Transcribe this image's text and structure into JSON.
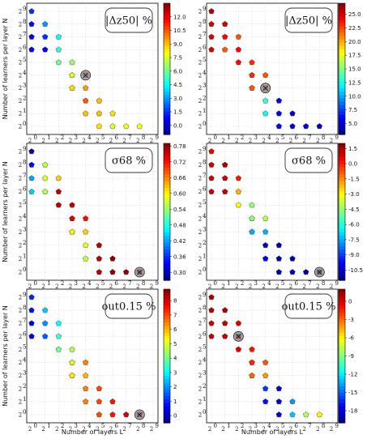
{
  "xlabel": "Number of layers L",
  "ylabel": "Number of learners per layer N",
  "xticks": [
    "2",
    "2",
    "2",
    "2",
    "2",
    "2",
    "2",
    "2",
    "2",
    "2"
  ],
  "yticks": [
    "2",
    "2",
    "2",
    "2",
    "2",
    "2",
    "2",
    "2",
    "2",
    "2"
  ],
  "exponents": [
    "0",
    "1",
    "2",
    "3",
    "4",
    "5",
    "6",
    "7",
    "8",
    "9"
  ],
  "chart_data": [
    {
      "type": "scatter",
      "panel": "top-left",
      "label": "|Δz50| %",
      "colorbar_ticks": [
        "12.0",
        "10.5",
        "9.0",
        "7.5",
        "6.0",
        "4.5",
        "3.0",
        "1.5",
        "0.0"
      ],
      "colorbar_range": [
        -1.0,
        13.5
      ],
      "x": [
        0,
        0,
        0,
        0,
        1,
        1,
        1,
        2,
        2,
        2,
        3,
        3,
        3,
        3,
        3,
        4,
        4,
        4,
        4,
        5,
        5,
        5,
        6,
        6,
        7,
        8
      ],
      "y": [
        9,
        8,
        7,
        6,
        8,
        7,
        6,
        7,
        6,
        5,
        5,
        4,
        4,
        3,
        3,
        3,
        4,
        2,
        1,
        2,
        1,
        0,
        1,
        0,
        0,
        0
      ],
      "values": [
        1.5,
        1.0,
        0.5,
        0.5,
        3.0,
        1.5,
        0.5,
        4.5,
        5.0,
        6.0,
        6.5,
        7.0,
        7.5,
        8.0,
        8.5,
        9.5,
        10.5,
        10.5,
        9.0,
        9.0,
        9.0,
        8.5,
        8.5,
        7.5,
        8.0,
        8.0
      ],
      "highlight": {
        "x": 4,
        "y": 4
      }
    },
    {
      "type": "scatter",
      "panel": "top-right",
      "label": "|Δz50| %",
      "colorbar_ticks": [
        "25.0",
        "22.5",
        "20.0",
        "17.5",
        "15.0",
        "12.5",
        "10.0",
        "7.5",
        "5.0"
      ],
      "colorbar_range": [
        3.0,
        27.0
      ],
      "x": [
        0,
        0,
        0,
        0,
        1,
        1,
        1,
        2,
        2,
        2,
        3,
        3,
        3,
        3,
        3,
        4,
        4,
        4,
        4,
        5,
        5,
        5,
        6,
        6,
        7,
        8
      ],
      "y": [
        9,
        8,
        7,
        6,
        8,
        7,
        6,
        7,
        6,
        5,
        5,
        4,
        4,
        3,
        3,
        3,
        4,
        2,
        1,
        2,
        1,
        0,
        1,
        0,
        0,
        0
      ],
      "values": [
        26,
        25,
        25,
        25,
        25,
        24,
        22,
        22,
        24,
        24,
        23,
        23,
        23,
        22,
        22,
        21,
        22,
        13,
        12,
        6,
        6,
        6,
        5,
        5,
        5,
        5
      ],
      "highlight": {
        "x": 4,
        "y": 3
      }
    },
    {
      "type": "scatter",
      "panel": "middle-left",
      "label": "σ68 %",
      "colorbar_ticks": [
        "0.78",
        "0.72",
        "0.66",
        "0.60",
        "0.54",
        "0.48",
        "0.42",
        "0.36",
        "0.30"
      ],
      "colorbar_range": [
        0.27,
        0.79
      ],
      "x": [
        0,
        0,
        0,
        0,
        1,
        1,
        1,
        2,
        2,
        2,
        3,
        3,
        3,
        3,
        3,
        4,
        4,
        4,
        4,
        5,
        5,
        5,
        6,
        6,
        7,
        8
      ],
      "y": [
        9,
        8,
        7,
        6,
        8,
        7,
        6,
        7,
        6,
        5,
        5,
        4,
        4,
        3,
        3,
        3,
        4,
        2,
        1,
        2,
        1,
        0,
        1,
        0,
        0,
        0
      ],
      "values": [
        0.3,
        0.34,
        0.42,
        0.44,
        0.56,
        0.58,
        0.55,
        0.62,
        0.76,
        0.76,
        0.76,
        0.76,
        0.74,
        0.7,
        0.6,
        0.62,
        0.72,
        0.58,
        0.56,
        0.76,
        0.76,
        0.76,
        0.78,
        0.78,
        0.78,
        0.78
      ],
      "highlight": {
        "x": 8,
        "y": 0
      }
    },
    {
      "type": "scatter",
      "panel": "middle-right",
      "label": "σ68 %",
      "colorbar_ticks": [
        "1.5",
        "0.0",
        "-1.5",
        "-3.0",
        "-4.5",
        "-6.0",
        "-7.5",
        "-9.0",
        "-10.5"
      ],
      "colorbar_range": [
        -11.5,
        2.0
      ],
      "x": [
        0,
        0,
        0,
        0,
        1,
        1,
        1,
        2,
        2,
        2,
        3,
        3,
        3,
        3,
        3,
        4,
        4,
        4,
        4,
        5,
        5,
        5,
        6,
        6,
        7,
        8
      ],
      "y": [
        9,
        8,
        7,
        6,
        8,
        7,
        6,
        7,
        6,
        5,
        5,
        4,
        4,
        3,
        3,
        3,
        4,
        2,
        1,
        2,
        1,
        0,
        1,
        0,
        0,
        0
      ],
      "values": [
        0.5,
        1.0,
        1.0,
        1.0,
        1.5,
        1.0,
        1.0,
        0.0,
        -2.0,
        -3.0,
        -4.5,
        -5.0,
        -4.5,
        -6.0,
        -7.5,
        -7.5,
        -4.0,
        -10.5,
        -10.0,
        -11.0,
        -11.0,
        -11.0,
        -11.0,
        -10.5,
        -11.0,
        -11.0
      ],
      "highlight": {
        "x": 8,
        "y": 0
      }
    },
    {
      "type": "scatter",
      "panel": "bottom-left",
      "label": "out0.15 %",
      "colorbar_ticks": [
        "8",
        "7",
        "6",
        "5",
        "4",
        "3",
        "2",
        "1",
        "0"
      ],
      "colorbar_range": [
        -0.5,
        8.8
      ],
      "x": [
        0,
        0,
        0,
        0,
        1,
        1,
        1,
        2,
        2,
        2,
        3,
        3,
        3,
        3,
        3,
        4,
        4,
        4,
        4,
        5,
        5,
        5,
        6,
        6,
        7,
        8
      ],
      "y": [
        9,
        8,
        7,
        6,
        8,
        7,
        6,
        7,
        6,
        5,
        5,
        4,
        4,
        3,
        3,
        3,
        4,
        2,
        1,
        2,
        1,
        0,
        1,
        0,
        0,
        0
      ],
      "values": [
        1.0,
        0.8,
        0.5,
        0.4,
        2.5,
        2.0,
        1.5,
        3.0,
        3.5,
        4.0,
        4.5,
        5.0,
        5.0,
        5.5,
        5.5,
        6.0,
        6.5,
        6.5,
        6.5,
        7.0,
        7.0,
        7.0,
        7.5,
        7.5,
        8.0,
        8.5
      ],
      "highlight": {
        "x": 8,
        "y": 0
      }
    },
    {
      "type": "scatter",
      "panel": "bottom-right",
      "label": "out0.15 %",
      "colorbar_ticks": [
        "0",
        "-3",
        "-6",
        "-9",
        "-12",
        "-15",
        "-18"
      ],
      "colorbar_range": [
        -20.0,
        2.0
      ],
      "x": [
        0,
        0,
        0,
        0,
        1,
        1,
        1,
        2,
        2,
        2,
        3,
        3,
        3,
        3,
        3,
        4,
        4,
        4,
        4,
        5,
        5,
        5,
        6,
        6,
        7,
        8
      ],
      "y": [
        9,
        8,
        7,
        6,
        8,
        7,
        6,
        7,
        6,
        5,
        5,
        4,
        4,
        3,
        3,
        3,
        4,
        2,
        1,
        2,
        1,
        0,
        1,
        0,
        0,
        0
      ],
      "values": [
        1.0,
        1.0,
        0.5,
        0.5,
        1.0,
        0.5,
        0.5,
        0.0,
        0.5,
        0.0,
        -1.0,
        -1.5,
        -1.5,
        -2.0,
        -3.0,
        -4.0,
        -2.5,
        -16,
        -17,
        -18,
        -18,
        -18,
        -14,
        -13,
        -8,
        -6
      ],
      "highlight": {
        "x": 2,
        "y": 6
      }
    }
  ]
}
